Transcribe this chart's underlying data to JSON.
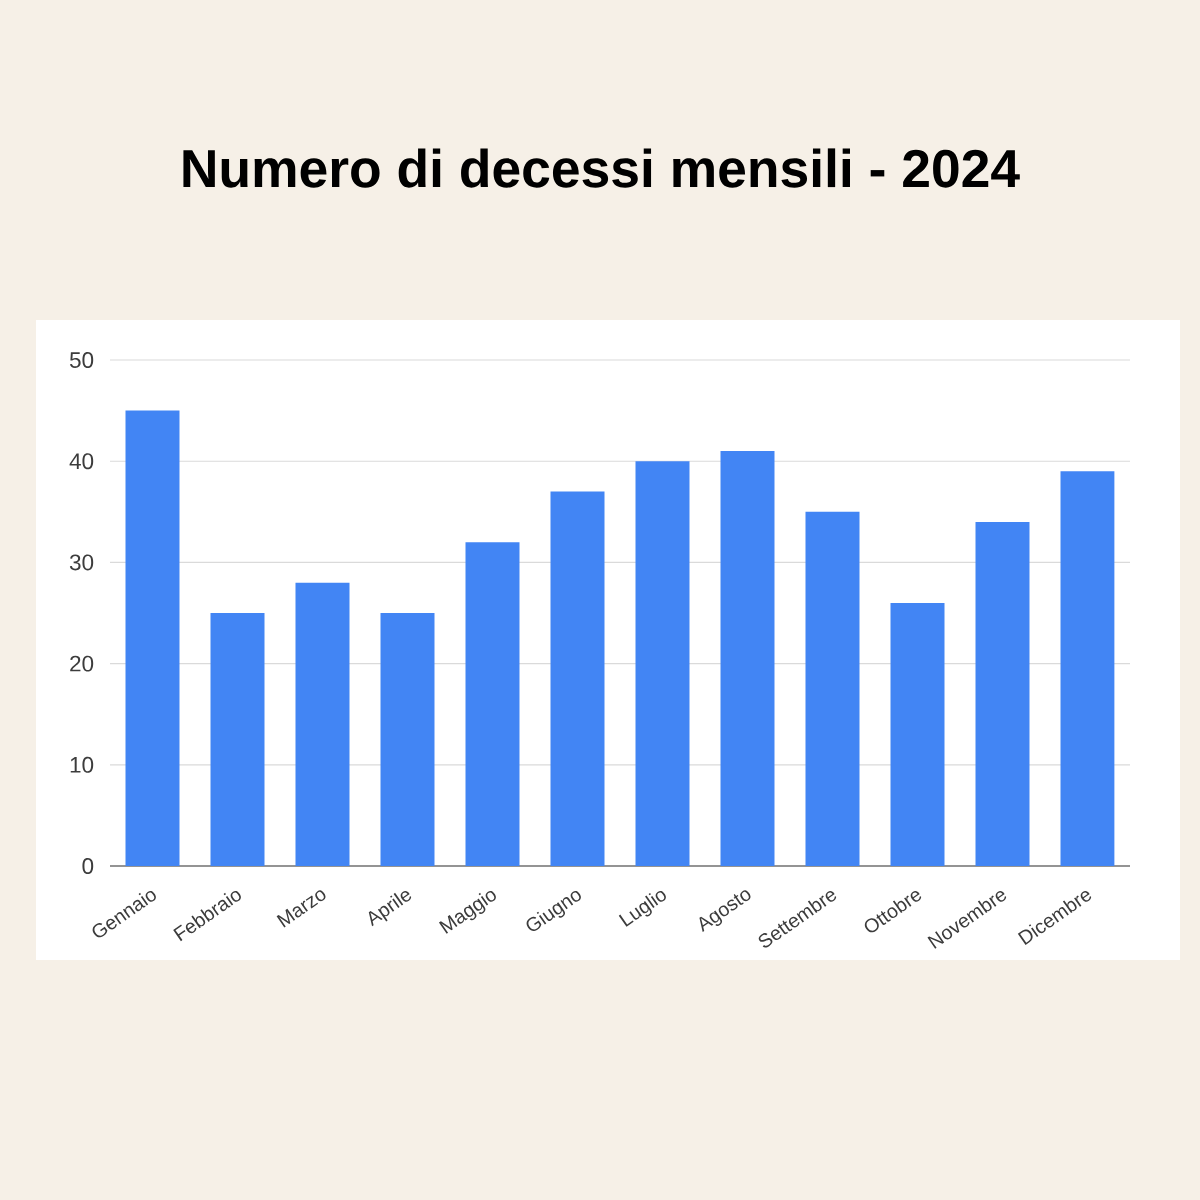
{
  "chart_data": {
    "type": "bar",
    "title": "Numero di decessi mensili - 2024",
    "categories": [
      "Gennaio",
      "Febbraio",
      "Marzo",
      "Aprile",
      "Maggio",
      "Giugno",
      "Luglio",
      "Agosto",
      "Settembre",
      "Ottobre",
      "Novembre",
      "Dicembre"
    ],
    "values": [
      45,
      25,
      28,
      25,
      32,
      37,
      40,
      41,
      35,
      26,
      34,
      39
    ],
    "color": "#4285f4",
    "ylim": [
      0,
      50
    ],
    "yticks": [
      0,
      10,
      20,
      30,
      40,
      50
    ],
    "grid": "y"
  }
}
